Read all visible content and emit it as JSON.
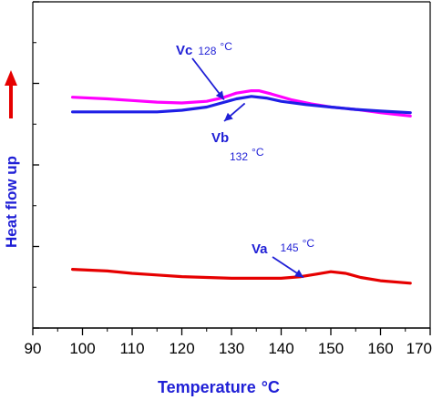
{
  "chart_data": {
    "type": "line",
    "xlabel": "Temperature",
    "xlabel_unit": "°C",
    "ylabel": "Heat flow up",
    "xlim": [
      90,
      170
    ],
    "x_ticks": [
      90,
      100,
      110,
      120,
      130,
      140,
      150,
      160,
      170
    ],
    "ylim": [
      0,
      4
    ],
    "y_ticks_shown_without_labels": true,
    "grid": false,
    "legend": "none",
    "colors": {
      "vc": "#ff00ff",
      "vb": "#1f1fe6",
      "va": "#e60000",
      "annotation": "#1f1fd6",
      "ylabel_arrow": "#e60000"
    },
    "series": [
      {
        "key": "vc",
        "color": "#ff00ff",
        "x": [
          98,
          105,
          110,
          115,
          120,
          125,
          128,
          131,
          134,
          135.5,
          138,
          142,
          146,
          150,
          155,
          160,
          166
        ],
        "y": [
          2.83,
          2.81,
          2.79,
          2.77,
          2.76,
          2.78,
          2.82,
          2.88,
          2.91,
          2.91,
          2.87,
          2.8,
          2.75,
          2.71,
          2.68,
          2.64,
          2.6
        ]
      },
      {
        "key": "vb",
        "color": "#1f1fe6",
        "x": [
          98,
          105,
          110,
          115,
          120,
          125,
          128,
          131,
          134,
          137,
          140,
          145,
          150,
          155,
          160,
          166
        ],
        "y": [
          2.65,
          2.65,
          2.65,
          2.65,
          2.67,
          2.71,
          2.76,
          2.81,
          2.84,
          2.82,
          2.78,
          2.74,
          2.71,
          2.68,
          2.66,
          2.64
        ]
      },
      {
        "key": "va",
        "color": "#e60000",
        "x": [
          98,
          105,
          110,
          115,
          120,
          125,
          130,
          135,
          140,
          144,
          147,
          150,
          153,
          156,
          160,
          166
        ],
        "y": [
          0.72,
          0.7,
          0.67,
          0.65,
          0.63,
          0.62,
          0.61,
          0.61,
          0.61,
          0.63,
          0.66,
          0.69,
          0.67,
          0.62,
          0.58,
          0.55
        ]
      }
    ],
    "annotations": [
      {
        "key": "vc",
        "label": "Vc",
        "temp": "128",
        "unit": "°C",
        "point": [
          128.5,
          2.8
        ]
      },
      {
        "key": "vb",
        "label": "Vb",
        "temp": "132",
        "unit": "°C",
        "point": [
          132.5,
          2.8
        ]
      },
      {
        "key": "va",
        "label": "Va",
        "temp": "145",
        "unit": "°C",
        "point": [
          144.5,
          0.62
        ]
      }
    ]
  }
}
